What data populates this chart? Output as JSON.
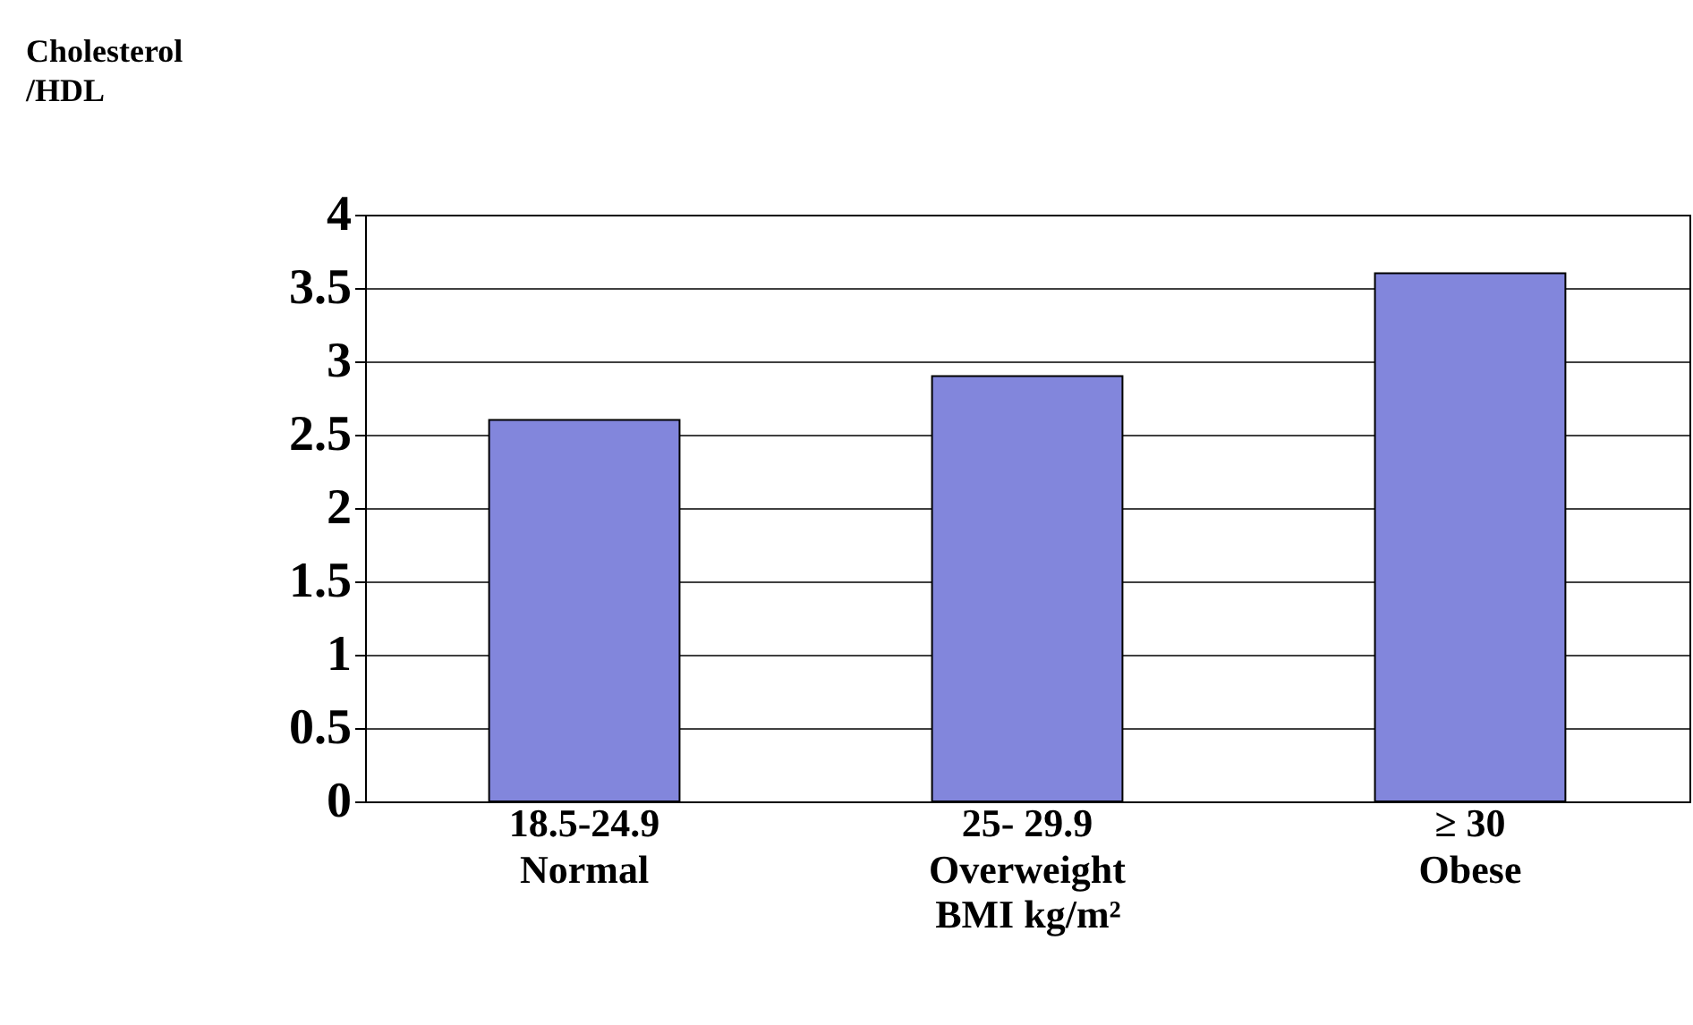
{
  "chart_data": {
    "type": "bar",
    "ylabel": "Cholesterol\n/HDL",
    "xlabel": "BMI kg/m²",
    "categories": [
      "18.5-24.9\nNormal",
      "25- 29.9\nOverweight",
      "≥ 30\nObese"
    ],
    "values": [
      2.6,
      2.9,
      3.6
    ],
    "color": "#8286dc",
    "ylim": [
      0,
      4
    ],
    "yticks": [
      0,
      0.5,
      1,
      1.5,
      2,
      2.5,
      3,
      3.5,
      4
    ],
    "grid": "y"
  }
}
